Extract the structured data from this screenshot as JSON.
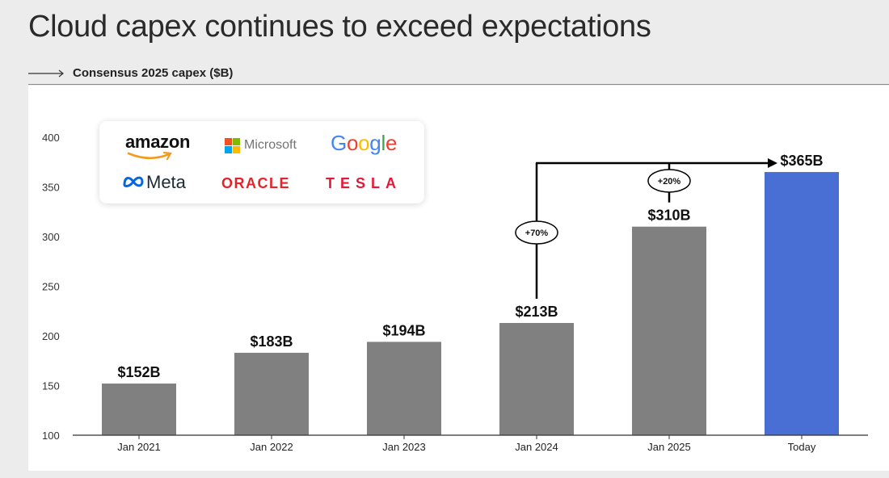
{
  "header": {
    "title": "Cloud capex continues to exceed expectations",
    "subtitle": "Consensus 2025 capex ($B)"
  },
  "logos": {
    "amazon": "amazon",
    "microsoft": "Microsoft",
    "google": "Google",
    "meta": "Meta",
    "oracle": "ORACLE",
    "tesla": "TESLA"
  },
  "colors": {
    "bar_default": "#808080",
    "bar_highlight": "#4a6fd4",
    "axis": "#333333",
    "annotation": "#000000"
  },
  "chart_data": {
    "type": "bar",
    "title": "Consensus 2025 capex ($B)",
    "categories": [
      "Jan 2021",
      "Jan 2022",
      "Jan 2023",
      "Jan 2024",
      "Jan 2025",
      "Today"
    ],
    "values": [
      152,
      183,
      194,
      213,
      310,
      365
    ],
    "value_labels": [
      "$152B",
      "$183B",
      "$194B",
      "$213B",
      "$310B",
      "$365B"
    ],
    "highlight_index": 5,
    "ylim": [
      100,
      400
    ],
    "yticks": [
      100,
      150,
      200,
      250,
      300,
      350,
      400
    ],
    "grid": false,
    "annotations": [
      {
        "label": "+70%",
        "from": "Jan 2024",
        "to": "Today"
      },
      {
        "label": "+20%",
        "from": "Jan 2025",
        "to": "Today"
      }
    ]
  }
}
